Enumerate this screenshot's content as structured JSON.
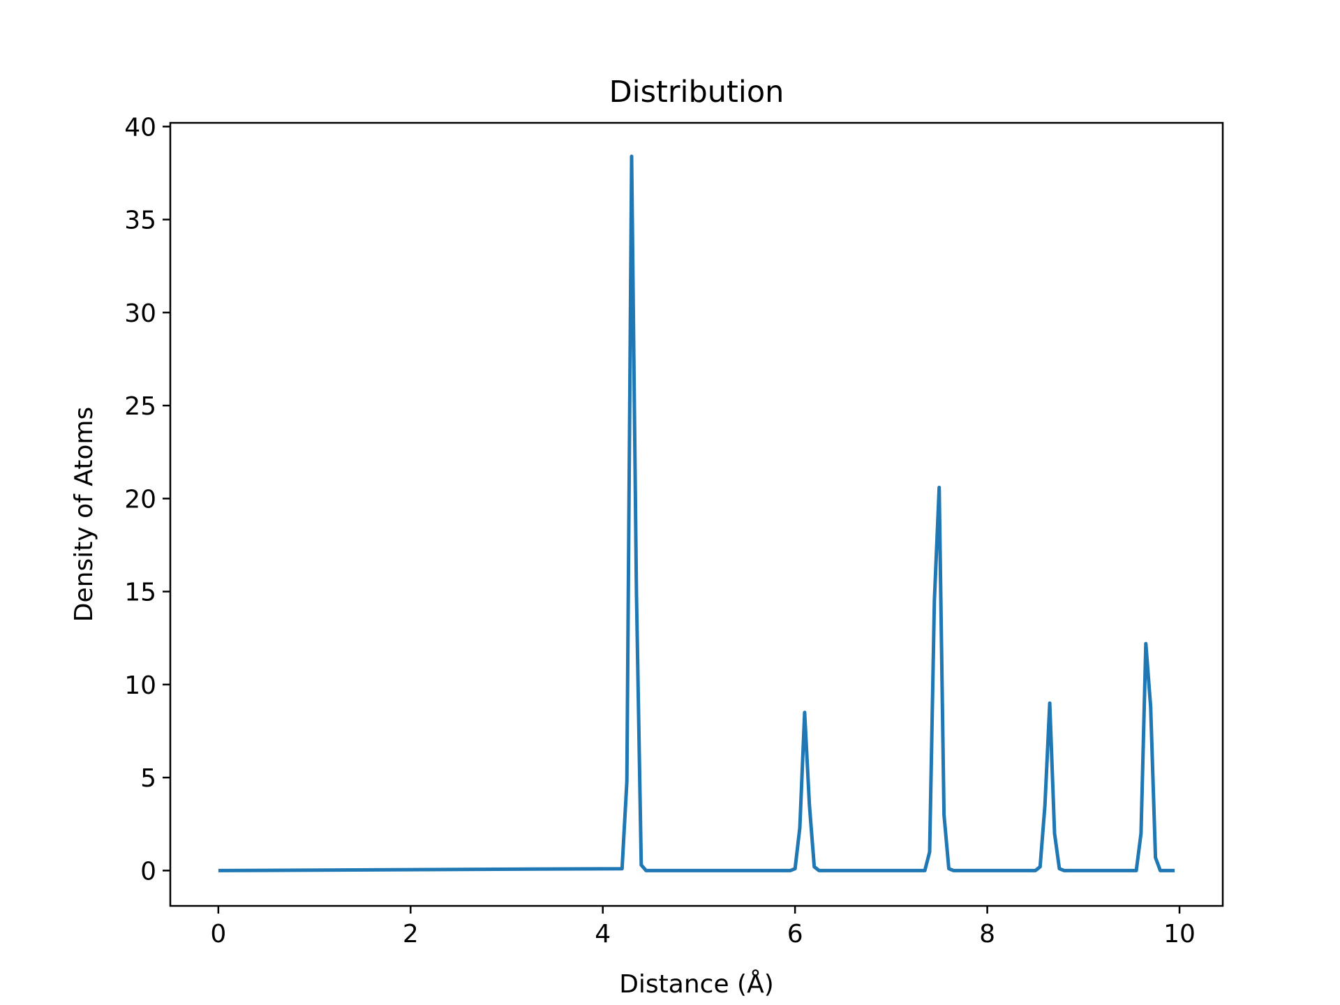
{
  "chart_data": {
    "type": "line",
    "title": "Distribution",
    "xlabel": "Distance (Å)",
    "ylabel": "Density of Atoms",
    "xlim": [
      -0.5,
      10.45
    ],
    "ylim": [
      -1.9,
      40.2
    ],
    "xticks": [
      0,
      2,
      4,
      6,
      8,
      10
    ],
    "yticks": [
      0,
      5,
      10,
      15,
      20,
      25,
      30,
      35,
      40
    ],
    "grid": false,
    "series": [
      {
        "name": "Distribution",
        "color": "#1f77b4",
        "points": [
          [
            0.0,
            0
          ],
          [
            4.2,
            0.1
          ],
          [
            4.25,
            4.8
          ],
          [
            4.3,
            38.4
          ],
          [
            4.35,
            15.0
          ],
          [
            4.4,
            0.3
          ],
          [
            4.45,
            0
          ],
          [
            5.95,
            0
          ],
          [
            6.0,
            0.1
          ],
          [
            6.05,
            2.3
          ],
          [
            6.1,
            8.5
          ],
          [
            6.15,
            3.5
          ],
          [
            6.2,
            0.2
          ],
          [
            6.25,
            0
          ],
          [
            7.35,
            0
          ],
          [
            7.4,
            1.0
          ],
          [
            7.45,
            14.5
          ],
          [
            7.5,
            20.6
          ],
          [
            7.55,
            3.0
          ],
          [
            7.6,
            0.1
          ],
          [
            7.65,
            0
          ],
          [
            8.5,
            0
          ],
          [
            8.55,
            0.2
          ],
          [
            8.6,
            3.5
          ],
          [
            8.65,
            9.0
          ],
          [
            8.7,
            2.0
          ],
          [
            8.75,
            0.1
          ],
          [
            8.8,
            0
          ],
          [
            9.55,
            0
          ],
          [
            9.6,
            2.0
          ],
          [
            9.65,
            12.2
          ],
          [
            9.7,
            8.8
          ],
          [
            9.75,
            0.7
          ],
          [
            9.8,
            0
          ],
          [
            9.95,
            0
          ]
        ]
      }
    ]
  }
}
